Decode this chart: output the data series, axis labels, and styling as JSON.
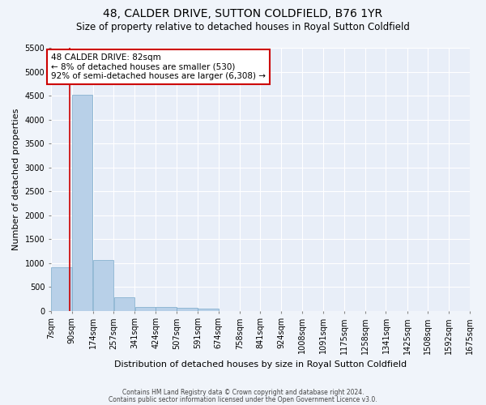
{
  "title": "48, CALDER DRIVE, SUTTON COLDFIELD, B76 1YR",
  "subtitle": "Size of property relative to detached houses in Royal Sutton Coldfield",
  "xlabel": "Distribution of detached houses by size in Royal Sutton Coldfield",
  "ylabel": "Number of detached properties",
  "footnote1": "Contains HM Land Registry data © Crown copyright and database right 2024.",
  "footnote2": "Contains public sector information licensed under the Open Government Licence v3.0.",
  "annotation_title": "48 CALDER DRIVE: 82sqm",
  "annotation_line1": "← 8% of detached houses are smaller (530)",
  "annotation_line2": "92% of semi-detached houses are larger (6,308) →",
  "property_sqm": 82,
  "bin_edges": [
    7,
    90,
    174,
    257,
    341,
    424,
    507,
    591,
    674,
    758,
    841,
    924,
    1008,
    1091,
    1175,
    1258,
    1341,
    1425,
    1508,
    1592,
    1675
  ],
  "bin_labels": [
    "7sqm",
    "90sqm",
    "174sqm",
    "257sqm",
    "341sqm",
    "424sqm",
    "507sqm",
    "591sqm",
    "674sqm",
    "758sqm",
    "841sqm",
    "924sqm",
    "1008sqm",
    "1091sqm",
    "1175sqm",
    "1258sqm",
    "1341sqm",
    "1425sqm",
    "1508sqm",
    "1592sqm",
    "1675sqm"
  ],
  "bar_heights": [
    900,
    4520,
    1060,
    275,
    82,
    72,
    62,
    50,
    0,
    0,
    0,
    0,
    0,
    0,
    0,
    0,
    0,
    0,
    0,
    0
  ],
  "bar_color": "#b8d0e8",
  "bar_edge_color": "#7aaaca",
  "highlight_line_color": "#cc0000",
  "annotation_box_color": "#cc0000",
  "ylim": [
    0,
    5500
  ],
  "yticks": [
    0,
    500,
    1000,
    1500,
    2000,
    2500,
    3000,
    3500,
    4000,
    4500,
    5000,
    5500
  ],
  "bg_color": "#f0f4fa",
  "plot_bg_color": "#e8eef8",
  "grid_color": "#ffffff",
  "title_fontsize": 10,
  "subtitle_fontsize": 8.5,
  "axis_label_fontsize": 8,
  "tick_fontsize": 7,
  "annotation_fontsize": 7.5
}
